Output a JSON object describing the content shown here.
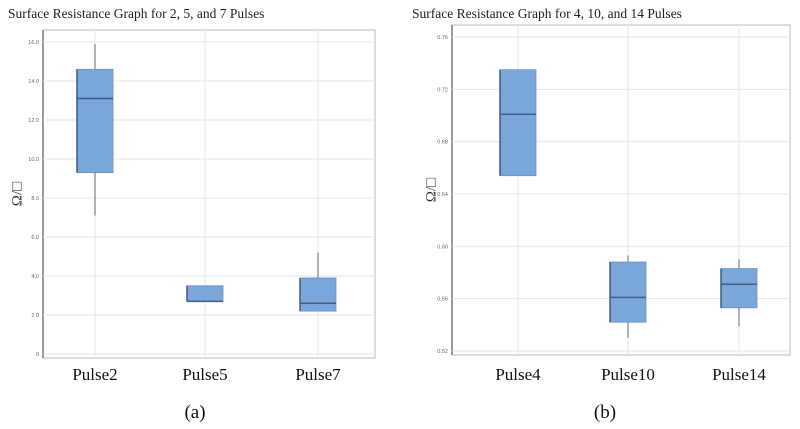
{
  "chart_data": [
    {
      "type": "box",
      "title": "Surface Resistance Graph for 2, 5, and 7 Pulses",
      "ylabel": "Ω/□",
      "xlabel": "",
      "panel_label": "(a)",
      "ylim": [
        0,
        16
      ],
      "yticks": [
        0,
        2,
        4,
        6,
        8,
        10,
        12,
        14,
        16
      ],
      "ytick_labels": [
        "0",
        "2.0",
        "4.0",
        "6.0",
        "8.0",
        "10.0",
        "12.0",
        "14.0",
        "16.0"
      ],
      "grid": true,
      "box_color": "#7aa6da",
      "categories": [
        "Pulse2",
        "Pulse5",
        "Pulse7"
      ],
      "boxes": [
        {
          "whisker_low": 7.1,
          "q1": 9.3,
          "median": 13.1,
          "q3": 14.6,
          "whisker_high": 15.9
        },
        {
          "whisker_low": 2.7,
          "q1": 2.7,
          "median": 2.7,
          "q3": 3.5,
          "whisker_high": 3.5
        },
        {
          "whisker_low": 2.2,
          "q1": 2.2,
          "median": 2.6,
          "q3": 3.9,
          "whisker_high": 5.2
        }
      ]
    },
    {
      "type": "box",
      "title": "Surface Resistance Graph for 4, 10, and 14 Pulses",
      "ylabel": "Ω/□",
      "xlabel": "",
      "panel_label": "(b)",
      "ylim": [
        0.52,
        0.76
      ],
      "yticks": [
        0.52,
        0.56,
        0.6,
        0.64,
        0.68,
        0.72,
        0.76
      ],
      "ytick_labels": [
        "0.52",
        "0.56",
        "0.60",
        "0.64",
        "0.68",
        "0.72",
        "0.76"
      ],
      "grid": true,
      "box_color": "#7aa6da",
      "categories": [
        "Pulse4",
        "Pulse10",
        "Pulse14"
      ],
      "boxes": [
        {
          "whisker_low": 0.654,
          "q1": 0.654,
          "median": 0.701,
          "q3": 0.735,
          "whisker_high": 0.735
        },
        {
          "whisker_low": 0.53,
          "q1": 0.542,
          "median": 0.561,
          "q3": 0.588,
          "whisker_high": 0.593
        },
        {
          "whisker_low": 0.539,
          "q1": 0.553,
          "median": 0.571,
          "q3": 0.583,
          "whisker_high": 0.59
        }
      ]
    }
  ]
}
